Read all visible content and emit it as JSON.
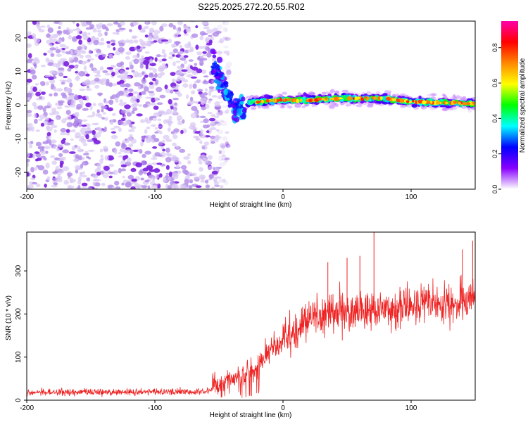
{
  "title": "S225.2025.272.20.55.R02",
  "chart_data": [
    {
      "type": "heatmap",
      "name": "spectrogram",
      "xlabel": "Height of straight line (km)",
      "ylabel": "Frequency (Hz)",
      "xlim": [
        -200,
        150
      ],
      "ylim": [
        -25,
        25
      ],
      "xticks": [
        -200,
        -100,
        0,
        100
      ],
      "yticks": [
        -20,
        -10,
        0,
        10,
        20
      ],
      "colorbar": {
        "label": "Normalized spectral amplitude",
        "range": [
          0,
          0.95
        ],
        "ticks": [
          0,
          0.2,
          0.4,
          0.6,
          0.8
        ],
        "colors": [
          "#ffffff",
          "#8800ff",
          "#0000ff",
          "#00ffff",
          "#00ff00",
          "#ffff00",
          "#ff8800",
          "#ff0000",
          "#ff00aa"
        ]
      },
      "noise_region_x": [
        -200,
        -50
      ],
      "transition_x": [
        -55,
        -30
      ],
      "signal_track": [
        {
          "x": -55,
          "y": 12
        },
        {
          "x": -50,
          "y": 9
        },
        {
          "x": -45,
          "y": 5
        },
        {
          "x": -40,
          "y": 1
        },
        {
          "x": -35,
          "y": -2
        },
        {
          "x": -30,
          "y": -1
        },
        {
          "x": -25,
          "y": 1
        },
        {
          "x": -20,
          "y": 1
        },
        {
          "x": 0,
          "y": 1.5
        },
        {
          "x": 20,
          "y": 1.5
        },
        {
          "x": 40,
          "y": 2
        },
        {
          "x": 60,
          "y": 2
        },
        {
          "x": 80,
          "y": 2
        },
        {
          "x": 100,
          "y": 1
        },
        {
          "x": 150,
          "y": 0.5
        }
      ]
    },
    {
      "type": "line",
      "name": "snr",
      "xlabel": "Height of straight line (km)",
      "ylabel": "SNR (10 * v/v)",
      "xlim": [
        -200,
        150
      ],
      "ylim": [
        0,
        390
      ],
      "xticks": [
        -200,
        -100,
        0,
        100
      ],
      "yticks": [
        0,
        100,
        200,
        300
      ],
      "series_color": "#ee2222",
      "trend": [
        {
          "x": -200,
          "y": 18
        },
        {
          "x": -60,
          "y": 20
        },
        {
          "x": -50,
          "y": 35
        },
        {
          "x": -40,
          "y": 50
        },
        {
          "x": -30,
          "y": 60
        },
        {
          "x": -20,
          "y": 80
        },
        {
          "x": -10,
          "y": 120
        },
        {
          "x": 0,
          "y": 140
        },
        {
          "x": 10,
          "y": 160
        },
        {
          "x": 20,
          "y": 190
        },
        {
          "x": 30,
          "y": 200
        },
        {
          "x": 50,
          "y": 205
        },
        {
          "x": 70,
          "y": 210
        },
        {
          "x": 90,
          "y": 215
        },
        {
          "x": 110,
          "y": 220
        },
        {
          "x": 130,
          "y": 225
        },
        {
          "x": 150,
          "y": 230
        }
      ],
      "spikes": [
        {
          "x": 71,
          "y": 390
        },
        {
          "x": 148,
          "y": 370
        },
        {
          "x": 35,
          "y": 320
        },
        {
          "x": 50,
          "y": 330
        },
        {
          "x": 60,
          "y": 335
        },
        {
          "x": 140,
          "y": 350
        }
      ]
    }
  ]
}
